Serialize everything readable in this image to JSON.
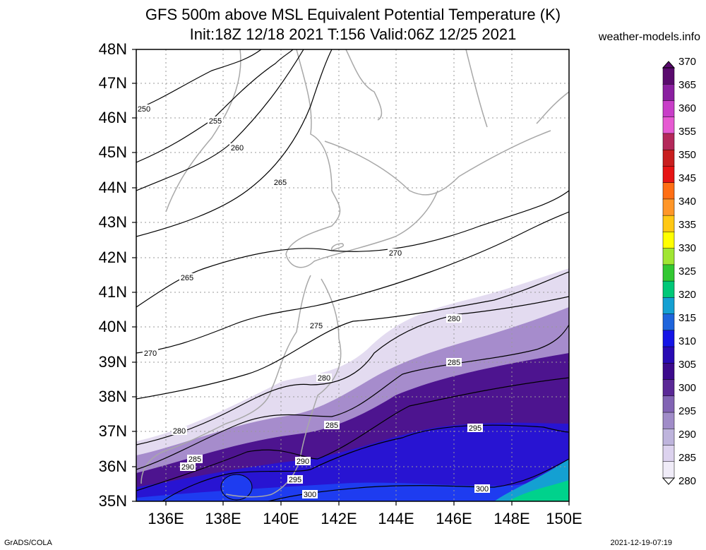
{
  "title_line1": "GFS 500m above MSL Equivalent Potential Temperature (K)",
  "title_line2": "Init:18Z 12/18 2021 T:156 Valid:06Z 12/25 2021",
  "site": "weather-models.info",
  "footer_left": "GrADS/COLA",
  "footer_right": "2021-12-19-07:19",
  "lat_labels": [
    "48N",
    "47N",
    "46N",
    "45N",
    "44N",
    "43N",
    "42N",
    "41N",
    "40N",
    "39N",
    "38N",
    "37N",
    "36N",
    "35N"
  ],
  "lon_labels": [
    "136E",
    "138E",
    "140E",
    "142E",
    "144E",
    "146E",
    "148E",
    "150E"
  ],
  "colorbar_labels": [
    "370",
    "365",
    "360",
    "355",
    "350",
    "345",
    "340",
    "335",
    "330",
    "325",
    "320",
    "315",
    "310",
    "305",
    "300",
    "295",
    "290",
    "285",
    "280"
  ],
  "colorbar_colors": [
    "#5a0a6e",
    "#8a1fa0",
    "#c83ec8",
    "#e65ad2",
    "#b4285a",
    "#c81e1e",
    "#e61414",
    "#ff6e14",
    "#ff9628",
    "#ffc814",
    "#ffff00",
    "#a0e632",
    "#32c832",
    "#00c878",
    "#14a0d2",
    "#1e64dc",
    "#1414e6",
    "#280ab4",
    "#3c0a8c",
    "#5a2896",
    "#8264b4",
    "#a08cc8",
    "#beb4dc",
    "#dcd2ee",
    "#f0ecf8"
  ],
  "contour_labels": [
    "250",
    "255",
    "260",
    "265",
    "265",
    "270",
    "270",
    "275",
    "280",
    "280",
    "280",
    "285",
    "285",
    "285",
    "290",
    "290",
    "295",
    "295",
    "300",
    "300"
  ]
}
